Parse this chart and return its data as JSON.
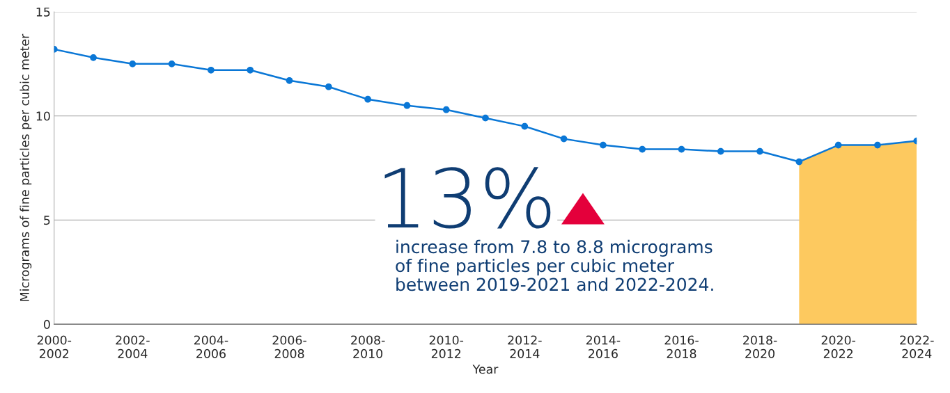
{
  "chart_data": {
    "type": "line",
    "xlabel": "Year",
    "ylabel": "Micrograms of fine particles per cubic meter",
    "categories": [
      "2000-\n2002",
      null,
      "2002-\n2004",
      null,
      "2004-\n2006",
      null,
      "2006-\n2008",
      null,
      "2008-\n2010",
      null,
      "2010-\n2012",
      null,
      "2012-\n2014",
      null,
      "2014-\n2016",
      null,
      "2016-\n2018",
      null,
      "2018-\n2020",
      null,
      "2020-\n2022",
      null,
      "2022-\n2024"
    ],
    "series": [
      {
        "type": "area",
        "color": "#fdc95f",
        "values": [
          null,
          null,
          null,
          null,
          null,
          null,
          null,
          null,
          null,
          null,
          null,
          null,
          null,
          null,
          null,
          null,
          null,
          null,
          null,
          7.8,
          8.6,
          8.6,
          8.8
        ]
      },
      {
        "color": "#0a77d6",
        "marker": "circle",
        "line_style": "solid",
        "values": [
          13.2,
          12.8,
          12.5,
          12.5,
          12.2,
          12.2,
          11.7,
          11.4,
          10.8,
          10.5,
          10.3,
          9.9,
          9.5,
          8.9,
          8.6,
          8.4,
          8.4,
          8.3,
          8.3,
          7.8,
          8.6,
          8.6,
          8.8
        ]
      }
    ],
    "ylim": [
      0,
      15
    ],
    "yticks": [
      0,
      5,
      10,
      15
    ],
    "grid": "y",
    "annotations": [
      "13%",
      "increase from 7.8 to 8.8 micrograms\nof fine particles per cubic meter\nbetween 2019-2021 and 2022-2024."
    ]
  }
}
